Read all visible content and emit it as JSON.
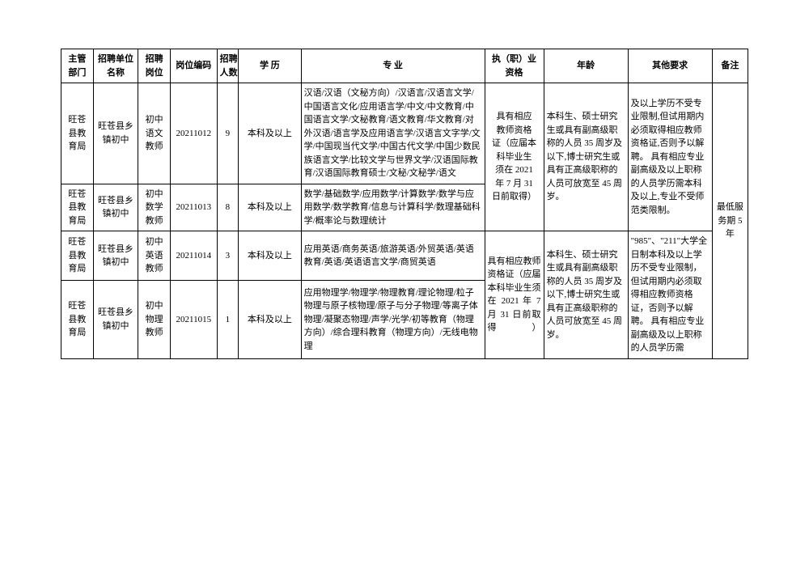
{
  "headers": {
    "dept": "主管\n部门",
    "unit": "招聘单位\n名称",
    "pos": "招聘\n岗位",
    "code": "岗位编码",
    "count": "招聘\n人数",
    "edu": "学 历",
    "major": "专   业",
    "qual": "执（职）业\n资格",
    "age": "年龄",
    "other": "其他要求",
    "note": "备注"
  },
  "rows": [
    {
      "dept": "旺苍县教育局",
      "unit": "旺苍县乡镇初中",
      "pos": "初中语文教师",
      "code": "20211012",
      "count": "9",
      "edu": "本科及以上",
      "major": "汉语/汉语（文秘方向）/汉语言/汉语言文学/中国语言文化/应用语言学/中文/中文教育/中国语言文学/文秘教育/语文教育/华文教育/对外汉语/语言学及应用语言学/汉语言文字学/文学/中国现当代文学/中国古代文学/中国少数民族语言文学/比较文学与世界文学/汉语国际教育/汉语国际教育硕士/文秘/文秘学/语文"
    },
    {
      "dept": "旺苍县教育局",
      "unit": "旺苍县乡镇初中",
      "pos": "初中数学教师",
      "code": "20211013",
      "count": "8",
      "edu": "本科及以上",
      "major": "数学/基础数学/应用数学/计算数学/数学与应用数学/数学教育/信息与计算科学/数理基础科学/概率论与数理统计"
    },
    {
      "dept": "旺苍县教育局",
      "unit": "旺苍县乡镇初中",
      "pos": "初中英语教师",
      "code": "20211014",
      "count": "3",
      "edu": "本科及以上",
      "major": "应用英语/商务英语/旅游英语/外贸英语/英语教育/英语/英语语言文学/商贸英语"
    },
    {
      "dept": "旺苍县教育局",
      "unit": "旺苍县乡镇初中",
      "pos": "初中物理教师",
      "code": "20211015",
      "count": "1",
      "edu": "本科及以上",
      "major": "应用物理学/物理学/物理教育/理论物理/粒子物理与原子核物理/原子与分子物理/等离子体物理/凝聚态物理/声学/光学/初等教育（物理方向）/综合理科教育（物理方向）/无线电物理"
    }
  ],
  "merged": {
    "qual1": "具有相应\n教师资格\n证（应届本\n科毕业生\n须在 2021\n年 7 月 31\n日前取得）",
    "age1": "本科生、硕士研究生或具有副高级职称的人员 35 周岁及以下,博士研究生或具有正高级职称的人员可放宽至 45 周岁。",
    "other1": "及以上学历不受专业限制,但试用期内必须取得相应教师资格证,否则予以解聘。  具有相应专业副高级及以上职称的人员学历需本科及以上,专业不受师范类限制。",
    "qual2": "具有相应教师资格证（应届本科毕业生须在 2021 年 7 月 31 日前取得）",
    "age2": "本科生、硕士研究生或具有副高级职称的人员 35 周岁及以下,博士研究生或具有正高级职称的人员可放宽至 45 周岁。",
    "other2": "\"985\"、\"211\"大学全日制本科及以上学历不受专业限制，但试用期内必须取得相应教师资格证，否则予以解聘。   具有相应专业副高级及以上职称的人员学历需",
    "note": "最低服务期 5 年"
  }
}
